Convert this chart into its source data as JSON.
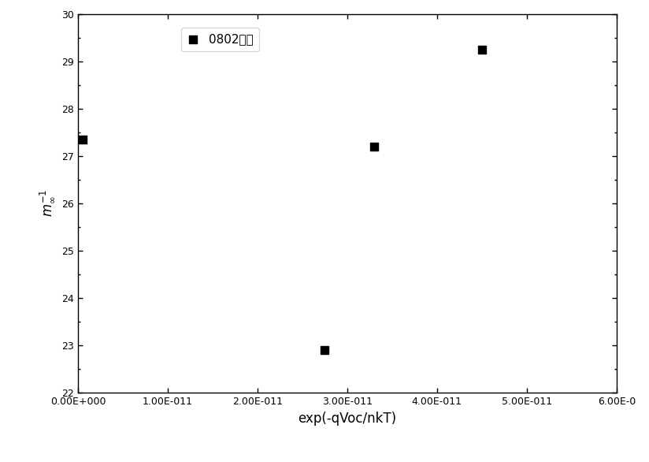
{
  "x_values": [
    5e-13,
    2.75e-11,
    3.3e-11,
    4.5e-11
  ],
  "y_values": [
    27.35,
    22.9,
    27.2,
    29.25
  ],
  "xlim": [
    0,
    6e-11
  ],
  "ylim": [
    22,
    30
  ],
  "xlabel": "exp(-qVoc/nkT)",
  "ylabel_line1": "m",
  "ylabel_sup": "∞",
  "ylabel_sub": "-1",
  "legend_label": "0802组件",
  "title": "",
  "marker": "s",
  "marker_color": "black",
  "marker_size": 7,
  "background_color": "#ffffff",
  "yticks": [
    22,
    23,
    24,
    25,
    26,
    27,
    28,
    29,
    30
  ],
  "x_tick_positions": [
    0,
    1e-11,
    2e-11,
    3e-11,
    4e-11,
    5e-11,
    6e-11
  ],
  "x_tick_labels": [
    "0.00E+000",
    "1.00E-011",
    "2.00E-011",
    "3.00E-011",
    "4.00E-011",
    "5.00E-011",
    "6.00E-0"
  ],
  "xlabel_fontsize": 12,
  "ylabel_fontsize": 12,
  "tick_fontsize": 9,
  "legend_fontsize": 11
}
